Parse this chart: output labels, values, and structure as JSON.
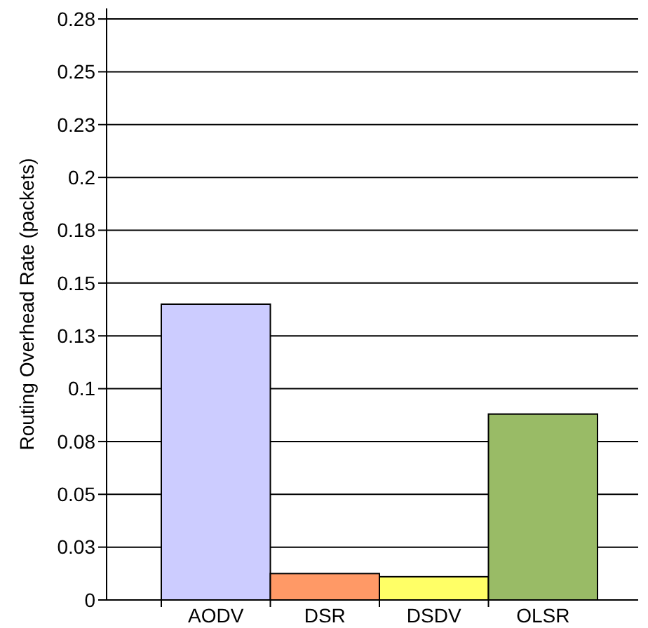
{
  "chart_data": {
    "type": "bar",
    "ylabel": "Routing Overhead Rate (packets)",
    "categories": [
      "AODV",
      "DSR",
      "DSDV",
      "OLSR"
    ],
    "values": [
      0.14,
      0.0125,
      0.011,
      0.088
    ],
    "colors": [
      "#ccccff",
      "#ff9966",
      "#ffff66",
      "#99bb66"
    ],
    "ylim": [
      0,
      0.28
    ],
    "yticks": [
      0,
      {
        "value": 0.025,
        "label": "0.03"
      },
      {
        "value": 0.05,
        "label": "0.05"
      },
      {
        "value": 0.075,
        "label": "0.08"
      },
      {
        "value": 0.1,
        "label": "0.1"
      },
      {
        "value": 0.125,
        "label": "0.13"
      },
      {
        "value": 0.15,
        "label": "0.15"
      },
      {
        "value": 0.175,
        "label": "0.18"
      },
      {
        "value": 0.2,
        "label": "0.2"
      },
      {
        "value": 0.225,
        "label": "0.23"
      },
      {
        "value": 0.25,
        "label": "0.25"
      },
      {
        "value": 0.275,
        "label": "0.28"
      }
    ],
    "grid": "y"
  }
}
